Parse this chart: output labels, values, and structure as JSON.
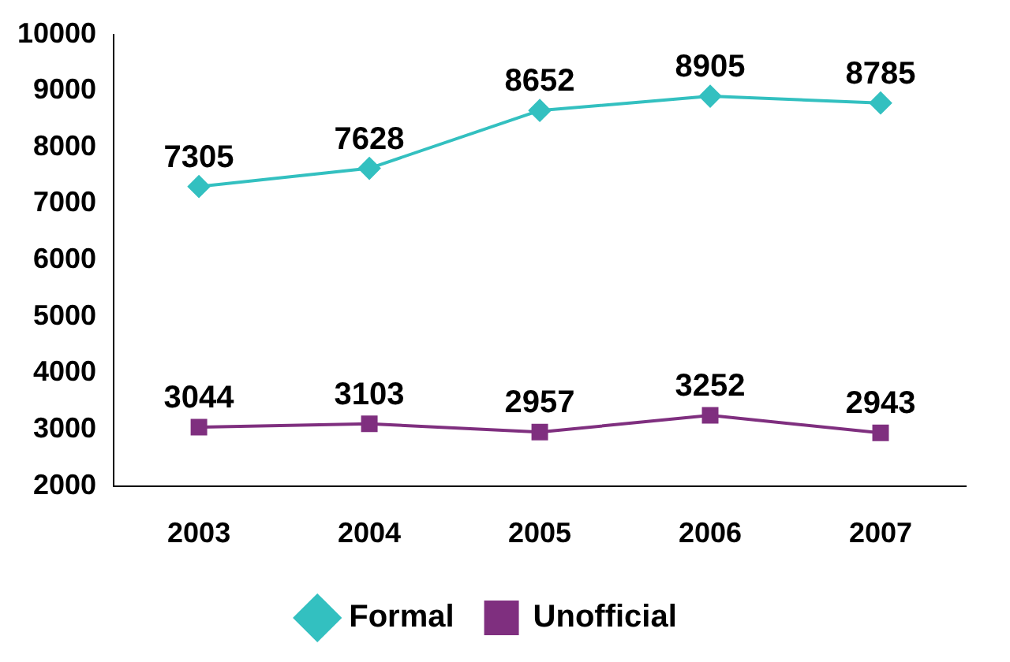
{
  "chart_data": {
    "type": "line",
    "categories": [
      "2003",
      "2004",
      "2005",
      "2006",
      "2007"
    ],
    "series": [
      {
        "name": "Formal",
        "color": "#33c0c0",
        "marker": "diamond",
        "values": [
          7305,
          7628,
          8652,
          8905,
          8785
        ]
      },
      {
        "name": "Unofficial",
        "color": "#7f2f7f",
        "marker": "square",
        "values": [
          3044,
          3103,
          2957,
          3252,
          2943
        ]
      }
    ],
    "ylim": [
      2000,
      10000
    ],
    "yticks": [
      2000,
      3000,
      4000,
      5000,
      6000,
      7000,
      8000,
      9000,
      10000
    ],
    "grid": false,
    "legend": "bottom",
    "data_labels": true
  }
}
